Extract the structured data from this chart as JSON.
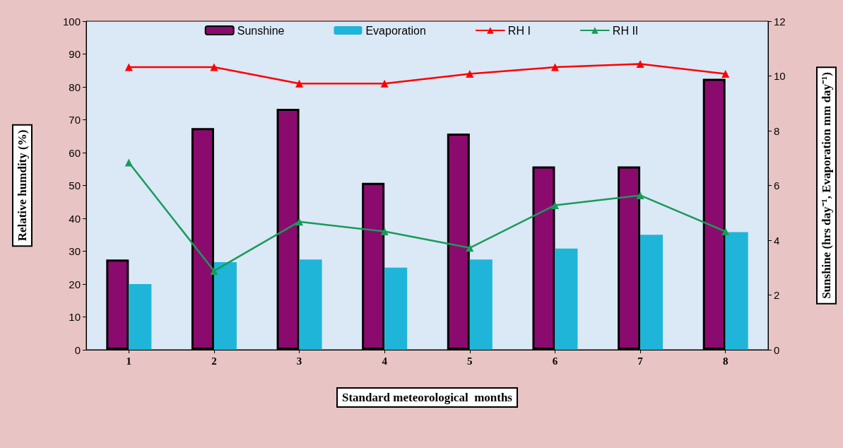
{
  "chart_data": {
    "type": "bar",
    "xlabel": "Standard meteorological  months",
    "ylabel": "Relative humdity (%)",
    "y2label": "Sunshine (hrs day⁻¹, Evaporation mm day⁻¹)",
    "categories": [
      "1",
      "2",
      "3",
      "4",
      "5",
      "6",
      "7",
      "8"
    ],
    "series": [
      {
        "name": "Sunshine",
        "axis": "y2",
        "color": "#8b0a6e",
        "values": [
          3.3,
          8.1,
          8.8,
          6.1,
          7.9,
          6.7,
          6.7,
          9.9
        ]
      },
      {
        "name": "Evaporation",
        "axis": "y2",
        "color": "#1fb5d8",
        "values": [
          2.4,
          3.2,
          3.3,
          3.0,
          3.3,
          3.7,
          4.2,
          4.3
        ]
      },
      {
        "name": "RH I",
        "type": "line",
        "color": "#ff0000",
        "values": [
          86,
          86,
          81,
          81,
          84,
          86,
          87,
          84
        ]
      },
      {
        "name": "RH II",
        "type": "line",
        "color": "#1a9a5a",
        "values": [
          57,
          24,
          39,
          36,
          31,
          44,
          47,
          36
        ]
      }
    ],
    "ylim": [
      0,
      100
    ],
    "yticks": [
      0,
      10,
      20,
      30,
      40,
      50,
      60,
      70,
      80,
      90,
      100
    ],
    "y2lim": [
      0,
      12
    ],
    "y2ticks": [
      0,
      2,
      4,
      6,
      8,
      10,
      12
    ],
    "grid": false,
    "legend": "top",
    "marker": "triangle",
    "line_style": "solid"
  }
}
